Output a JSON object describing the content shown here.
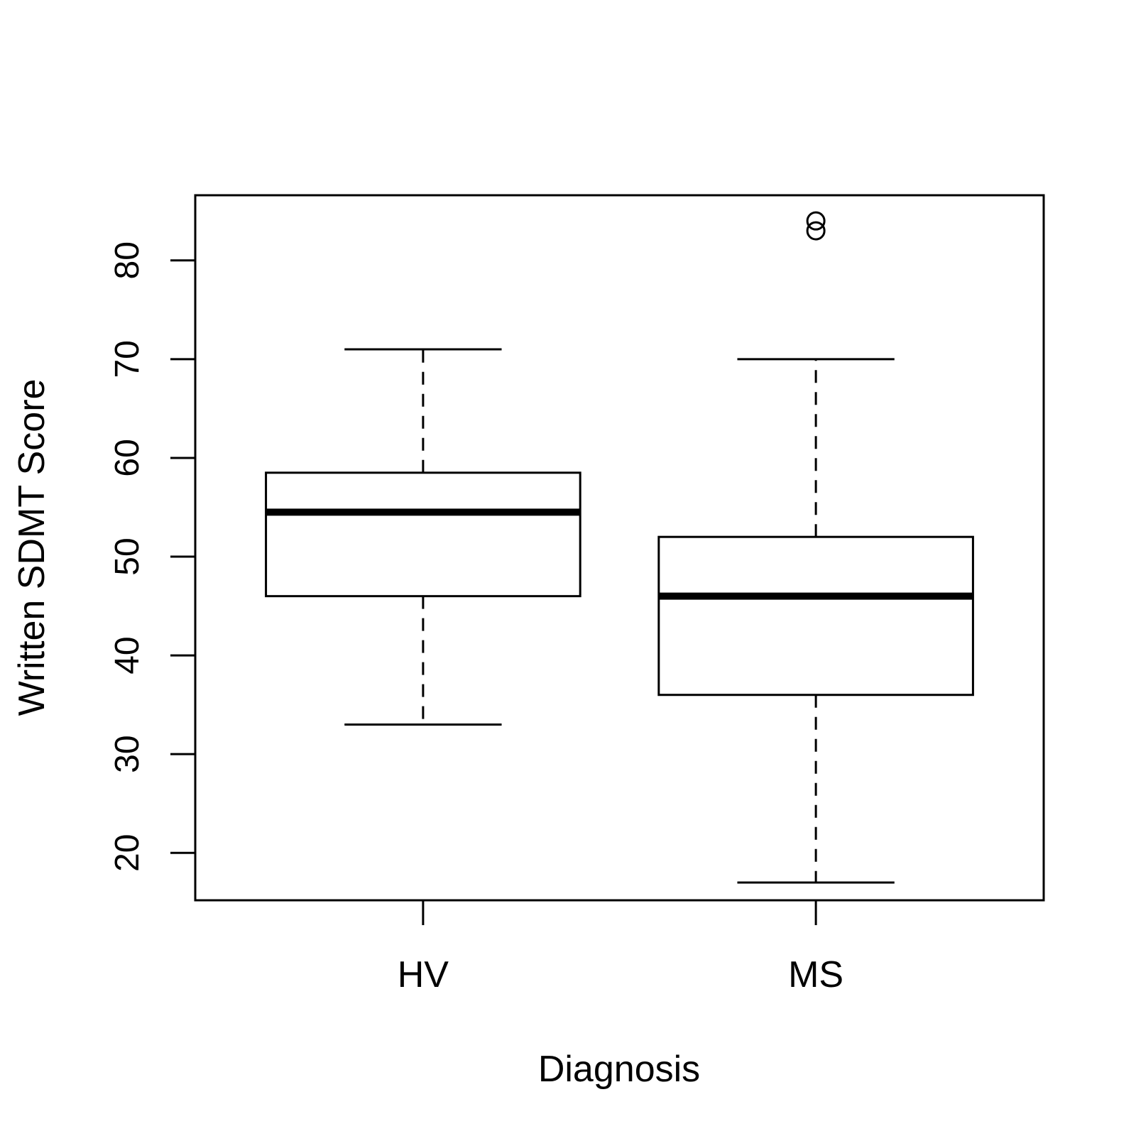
{
  "chart_data": {
    "type": "box",
    "xlabel": "Diagnosis",
    "ylabel": "Written SDMT Score",
    "ylim": [
      15.2,
      86.6
    ],
    "yticks": [
      20,
      30,
      40,
      50,
      60,
      70,
      80
    ],
    "grid": false,
    "legend": "none",
    "categories": [
      "HV",
      "MS"
    ],
    "boxes": [
      {
        "category": "HV",
        "whisker_low": 33,
        "q1": 46,
        "median": 54.5,
        "q3": 58.5,
        "whisker_high": 71,
        "outliers": []
      },
      {
        "category": "MS",
        "whisker_low": 17,
        "q1": 36,
        "median": 46,
        "q3": 52,
        "whisker_high": 70,
        "outliers": [
          84,
          83
        ]
      }
    ]
  }
}
